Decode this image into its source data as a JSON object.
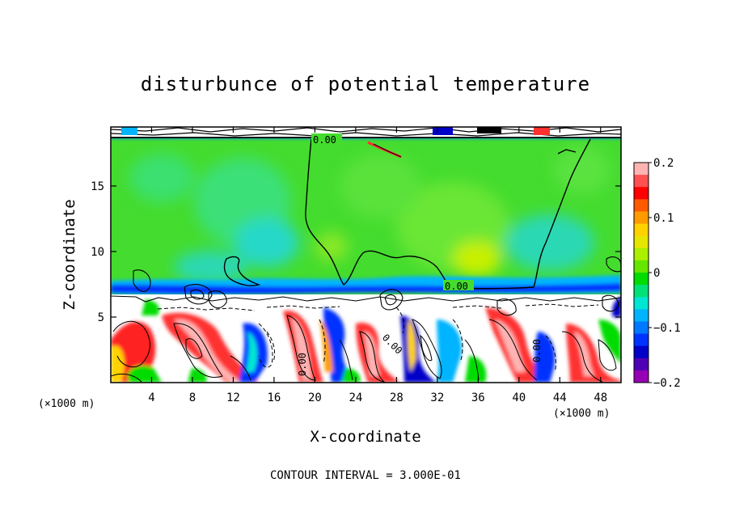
{
  "chart_data": {
    "type": "heatmap",
    "title": "disturbunce of potential temperature",
    "xlabel": "X-coordinate",
    "ylabel": "Z-coordinate",
    "x_unit": "(×1000 m)",
    "z_unit": "(×1000 m)",
    "xlim": [
      0,
      50
    ],
    "ylim": [
      0,
      19.5
    ],
    "x_ticks": [
      4,
      8,
      12,
      16,
      20,
      24,
      28,
      32,
      36,
      40,
      44,
      48
    ],
    "y_ticks": [
      5,
      10,
      15
    ],
    "colorbar": {
      "range": [
        -0.2,
        0.2
      ],
      "ticks": [
        0.2,
        0.1,
        0,
        -0.1,
        -0.2
      ],
      "tick_labels": [
        "0.2",
        "0.1",
        "0",
        "−0.1",
        "−0.2"
      ],
      "colors": [
        "#ffb4b4",
        "#ff5050",
        "#ff0000",
        "#ff5a00",
        "#ff9b00",
        "#ffd200",
        "#e6e600",
        "#aaf000",
        "#64e600",
        "#00dc00",
        "#00e178",
        "#00e6d2",
        "#00b4ff",
        "#0078ff",
        "#0032ff",
        "#0000c8",
        "#5000b4",
        "#9600b4"
      ]
    },
    "contour_labels": [
      {
        "x": 20.5,
        "z": 18.9,
        "text": "0.00"
      },
      {
        "x": 34.9,
        "z": 7.6,
        "text": "0.00"
      },
      {
        "x": 18.6,
        "z": 1.7,
        "text": "0.00"
      },
      {
        "x": 27.7,
        "z": 2.8,
        "text": "0.00"
      },
      {
        "x": 41.7,
        "z": 2.8,
        "text": "0.00"
      }
    ],
    "contour_interval_text": "CONTOUR INTERVAL = 3.000E-01"
  }
}
